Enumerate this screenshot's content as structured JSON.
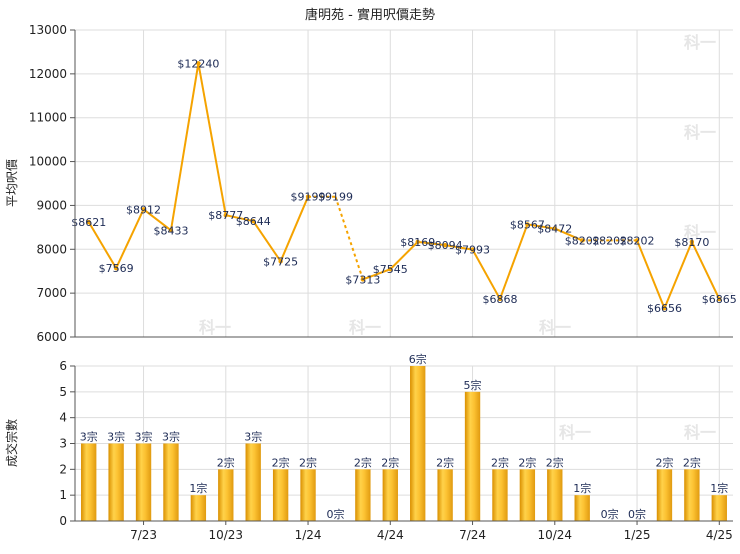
{
  "chart_data": [
    {
      "type": "line",
      "title": "唐明苑 - 實用呎價走勢",
      "ylabel": "平均呎價",
      "xlabel": "",
      "ylim": [
        6000,
        13000
      ],
      "yticks": [
        6000,
        7000,
        8000,
        9000,
        10000,
        11000,
        12000,
        13000
      ],
      "grid": true,
      "color": "#f5a300",
      "points": [
        {
          "label": "$8621",
          "value": 8621
        },
        {
          "label": "$7569",
          "value": 7569
        },
        {
          "label": "$8912",
          "value": 8912
        },
        {
          "label": "$8433",
          "value": 8433
        },
        {
          "label": "$12240",
          "value": 12240
        },
        {
          "label": "$8777",
          "value": 8777
        },
        {
          "label": "$8644",
          "value": 8644
        },
        {
          "label": "$7725",
          "value": 7725
        },
        {
          "label": "$9199",
          "value": 9199
        },
        {
          "label": "$9199",
          "value": 9199,
          "interpolated": true
        },
        {
          "label": "$7313",
          "value": 7313
        },
        {
          "label": "$7545",
          "value": 7545
        },
        {
          "label": "$8169",
          "value": 8169
        },
        {
          "label": "$8094",
          "value": 8094
        },
        {
          "label": "$7993",
          "value": 7993
        },
        {
          "label": "$6868",
          "value": 6868
        },
        {
          "label": "$8567",
          "value": 8567
        },
        {
          "label": "$8472",
          "value": 8472
        },
        {
          "label": "$8202",
          "value": 8202
        },
        {
          "label": "$8202",
          "value": 8202,
          "interpolated": true
        },
        {
          "label": "$8202",
          "value": 8202
        },
        {
          "label": "$6656",
          "value": 6656
        },
        {
          "label": "$8170",
          "value": 8170
        },
        {
          "label": "$6865",
          "value": 6865
        }
      ]
    },
    {
      "type": "bar",
      "ylabel": "成交宗數",
      "xlabel": "",
      "ylim": [
        0,
        6
      ],
      "yticks": [
        0,
        1,
        2,
        3,
        4,
        5,
        6
      ],
      "grid": true,
      "color": "#f0b020",
      "categories": [
        "",
        "",
        "7/23",
        "",
        "",
        "10/23",
        "",
        "",
        "1/24",
        "",
        "",
        "4/24",
        "",
        "",
        "7/24",
        "",
        "",
        "10/24",
        "",
        "",
        "1/25",
        "",
        "",
        "4/25"
      ],
      "values": [
        3,
        3,
        3,
        3,
        1,
        2,
        3,
        2,
        2,
        0,
        2,
        2,
        6,
        2,
        5,
        2,
        2,
        2,
        1,
        0,
        0,
        2,
        2,
        1
      ],
      "bar_labels": [
        "3宗",
        "3宗",
        "3宗",
        "3宗",
        "1宗",
        "2宗",
        "3宗",
        "2宗",
        "2宗",
        "0宗",
        "2宗",
        "2宗",
        "6宗",
        "2宗",
        "5宗",
        "2宗",
        "2宗",
        "2宗",
        "1宗",
        "0宗",
        "0宗",
        "2宗",
        "2宗",
        "1宗"
      ]
    }
  ],
  "watermark": "科一"
}
